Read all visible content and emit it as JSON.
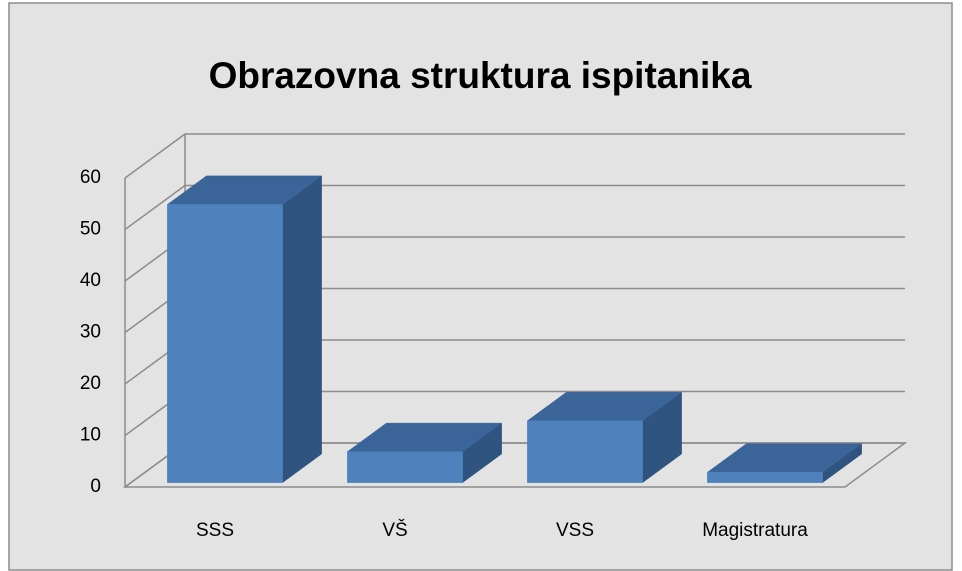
{
  "chart_data": {
    "type": "bar",
    "title": "Obrazovna struktura ispitanika",
    "categories": [
      "SSS",
      "VŠ",
      "VSS",
      "Magistratura"
    ],
    "values": [
      54,
      6,
      12,
      2
    ],
    "color": "#4f81bd",
    "ylim": [
      0,
      60
    ],
    "yticks": [
      0,
      10,
      20,
      30,
      40,
      50,
      60
    ],
    "grid": true
  }
}
